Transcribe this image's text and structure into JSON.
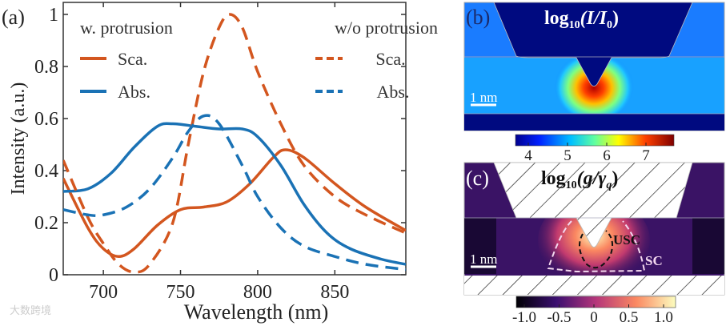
{
  "chart_data": {
    "type": "line",
    "panel_label": "(a)",
    "xlabel": "Wavelength  (nm)",
    "ylabel": "Intensity (a.u.)",
    "xlim": [
      674,
      896
    ],
    "ylim": [
      0,
      1.05
    ],
    "xticks": [
      700,
      750,
      800,
      850
    ],
    "yticks": [
      0,
      0.2,
      0.4,
      0.6,
      0.8,
      1
    ],
    "ytick_labels": [
      "0",
      "0.2",
      "0.4",
      "0.6",
      "0.8",
      "1"
    ],
    "grid": false,
    "legend": {
      "left_title": "w. protrusion",
      "right_title": "w/o protrusion",
      "sca": "Sca.",
      "abs": "Abs."
    },
    "series": [
      {
        "name": "w. protrusion Sca.",
        "color": "#d3561f",
        "dash": false,
        "x": [
          674,
          690,
          700,
          710,
          720,
          735,
          750,
          765,
          780,
          795,
          810,
          818,
          830,
          850,
          870,
          896
        ],
        "y": [
          0.37,
          0.18,
          0.1,
          0.07,
          0.1,
          0.19,
          0.25,
          0.26,
          0.28,
          0.35,
          0.45,
          0.48,
          0.45,
          0.35,
          0.26,
          0.17
        ]
      },
      {
        "name": "w. protrusion Abs.",
        "color": "#1a72b5",
        "dash": false,
        "x": [
          674,
          690,
          705,
          720,
          735,
          745,
          760,
          775,
          790,
          800,
          815,
          830,
          845,
          860,
          880,
          896
        ],
        "y": [
          0.32,
          0.33,
          0.39,
          0.49,
          0.57,
          0.58,
          0.57,
          0.56,
          0.56,
          0.53,
          0.42,
          0.27,
          0.16,
          0.1,
          0.06,
          0.04
        ]
      },
      {
        "name": "w/o protrusion Sca.",
        "color": "#d3561f",
        "dash": true,
        "x": [
          674,
          690,
          700,
          710,
          720,
          730,
          745,
          755,
          765,
          775,
          782,
          790,
          800,
          815,
          830,
          850,
          870,
          896
        ],
        "y": [
          0.44,
          0.22,
          0.12,
          0.04,
          0.01,
          0.04,
          0.2,
          0.5,
          0.78,
          0.95,
          1.0,
          0.95,
          0.78,
          0.58,
          0.42,
          0.3,
          0.23,
          0.16
        ]
      },
      {
        "name": "w/o protrusion Abs.",
        "color": "#1a72b5",
        "dash": true,
        "x": [
          674,
          690,
          700,
          715,
          730,
          745,
          755,
          765,
          775,
          790,
          800,
          815,
          830,
          850,
          870,
          896
        ],
        "y": [
          0.25,
          0.23,
          0.23,
          0.26,
          0.33,
          0.45,
          0.55,
          0.61,
          0.58,
          0.42,
          0.3,
          0.18,
          0.11,
          0.07,
          0.04,
          0.02
        ]
      }
    ]
  },
  "panel_b": {
    "label": "(b)",
    "title_main": "log",
    "title_sub": "10",
    "title_rest": "(I/I",
    "title_sub2": "0",
    "title_close": ")",
    "scale_bar": "1 nm",
    "colorbar_ticks": [
      "4",
      "5",
      "6",
      "7"
    ]
  },
  "panel_c": {
    "label": "(c)",
    "title_main": "log",
    "title_sub": "10",
    "title_rest": "(g/γ",
    "title_sub2": "q",
    "title_close": ")",
    "scale_bar": "1 nm",
    "region_usc": "USC",
    "region_sc": "SC",
    "colorbar_ticks": [
      "-1.0",
      "-0.5",
      "0",
      "0.5",
      "1.0"
    ]
  },
  "watermark": "大数跨境"
}
